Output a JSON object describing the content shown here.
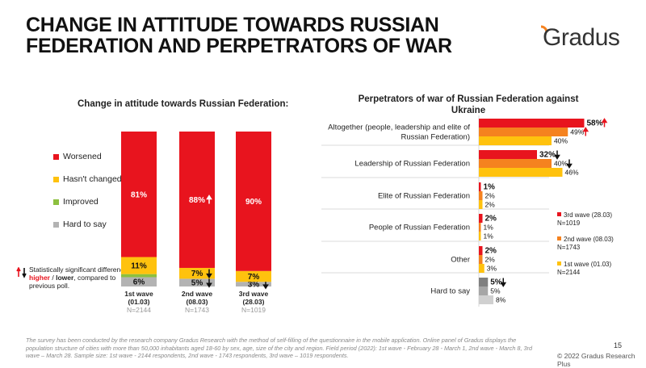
{
  "page": {
    "title": "CHANGE IN ATTITUDE TOWARDS RUSSIAN FEDERATION AND PERPETRATORS OF WAR",
    "logo_text": "Gradus",
    "page_number": "15",
    "copyright": "© 2022 Gradus Research Plus",
    "footnote": "The survey has been conducted by the research company Gradus Research with the method of self-filling of the questionnaire in the mobile application. Online panel of Gradus displays the population structure of cities with more than 50,000 inhabitants aged 18-60 by sex, age, size of the city and region. Field period (2022): 1st wave - February 28 - March 1, 2nd wave - March 8, 3rd wave – March 28. Sample size: 1st wave - 2144 respondents, 2nd wave - 1743 respondents, 3rd wave – 1019 respondents.",
    "significance_note": {
      "prefix": "Statistically significant differences ",
      "higher": "higher",
      "sep": " / ",
      "lower": "lower",
      "suffix": ", compared to previous poll."
    }
  },
  "chart_data": [
    {
      "type": "bar",
      "stacked": true,
      "title": "Change in attitude towards Russian Federation:",
      "categories": [
        {
          "label": "1st wave",
          "date": "(01.03)",
          "n": "N=2144"
        },
        {
          "label": "2nd wave",
          "date": "(08.03)",
          "n": "N=1743"
        },
        {
          "label": "3rd wave",
          "date": "(28.03)",
          "n": "N=1019"
        }
      ],
      "series": [
        {
          "name": "Hard to say",
          "color": "#b3b3b3",
          "values": [
            6,
            5,
            3
          ],
          "labels": [
            "6%",
            "5%",
            "3%"
          ],
          "arrows": [
            "",
            "down",
            "down"
          ]
        },
        {
          "name": "Improved",
          "color": "#8dc03f",
          "values": [
            2,
            0,
            0
          ],
          "labels": [
            "",
            "",
            ""
          ],
          "arrows": [
            "",
            "",
            ""
          ]
        },
        {
          "name": "Hasn't changed",
          "color": "#ffc20e",
          "values": [
            11,
            7,
            7
          ],
          "labels": [
            "11%",
            "7%",
            "7%"
          ],
          "arrows": [
            "",
            "down",
            ""
          ]
        },
        {
          "name": "Worsened",
          "color": "#e8141e",
          "values": [
            81,
            88,
            90
          ],
          "labels": [
            "81%",
            "88%",
            "90%"
          ],
          "arrows": [
            "",
            "up",
            ""
          ]
        }
      ],
      "legend_order": [
        "Worsened",
        "Hasn't changed",
        "Improved",
        "Hard to say"
      ],
      "ylim": [
        0,
        100
      ]
    },
    {
      "type": "bar",
      "orientation": "horizontal",
      "title": "Perpetrators of war of Russian Federation against Ukraine",
      "categories": [
        "Altogether (people, leadership and elite of Russian Federation)",
        "Leadership of Russian Federation",
        "Elite of Russian Federation",
        "People of Russian Federation",
        "Other",
        "Hard to say"
      ],
      "series": [
        {
          "name": "3rd wave (28.03)",
          "n": "N=1019",
          "values": [
            58,
            32,
            1,
            2,
            2,
            5
          ],
          "arrows": [
            "up",
            "down",
            "",
            "",
            "",
            "down"
          ]
        },
        {
          "name": "2nd wave (08.03)",
          "n": "N=1743",
          "values": [
            49,
            40,
            2,
            1,
            2,
            5
          ],
          "arrows": [
            "up",
            "down",
            "",
            "",
            "",
            ""
          ]
        },
        {
          "name": "1st wave (01.03)",
          "n": "N=2144",
          "values": [
            40,
            46,
            2,
            1,
            3,
            8
          ],
          "arrows": [
            "",
            "",
            "",
            "",
            "",
            ""
          ]
        }
      ],
      "colors_by_category": [
        [
          "#e8141e",
          "#f5821f",
          "#ffc20e"
        ],
        [
          "#e8141e",
          "#f5821f",
          "#ffc20e"
        ],
        [
          "#e8141e",
          "#f5821f",
          "#ffc20e"
        ],
        [
          "#e8141e",
          "#f5821f",
          "#ffc20e"
        ],
        [
          "#e8141e",
          "#f5821f",
          "#ffc20e"
        ],
        [
          "#7f7f7f",
          "#a6a6a6",
          "#d0d0d0"
        ]
      ],
      "legend_colors": [
        "#e8141e",
        "#f5821f",
        "#ffc20e"
      ]
    }
  ]
}
